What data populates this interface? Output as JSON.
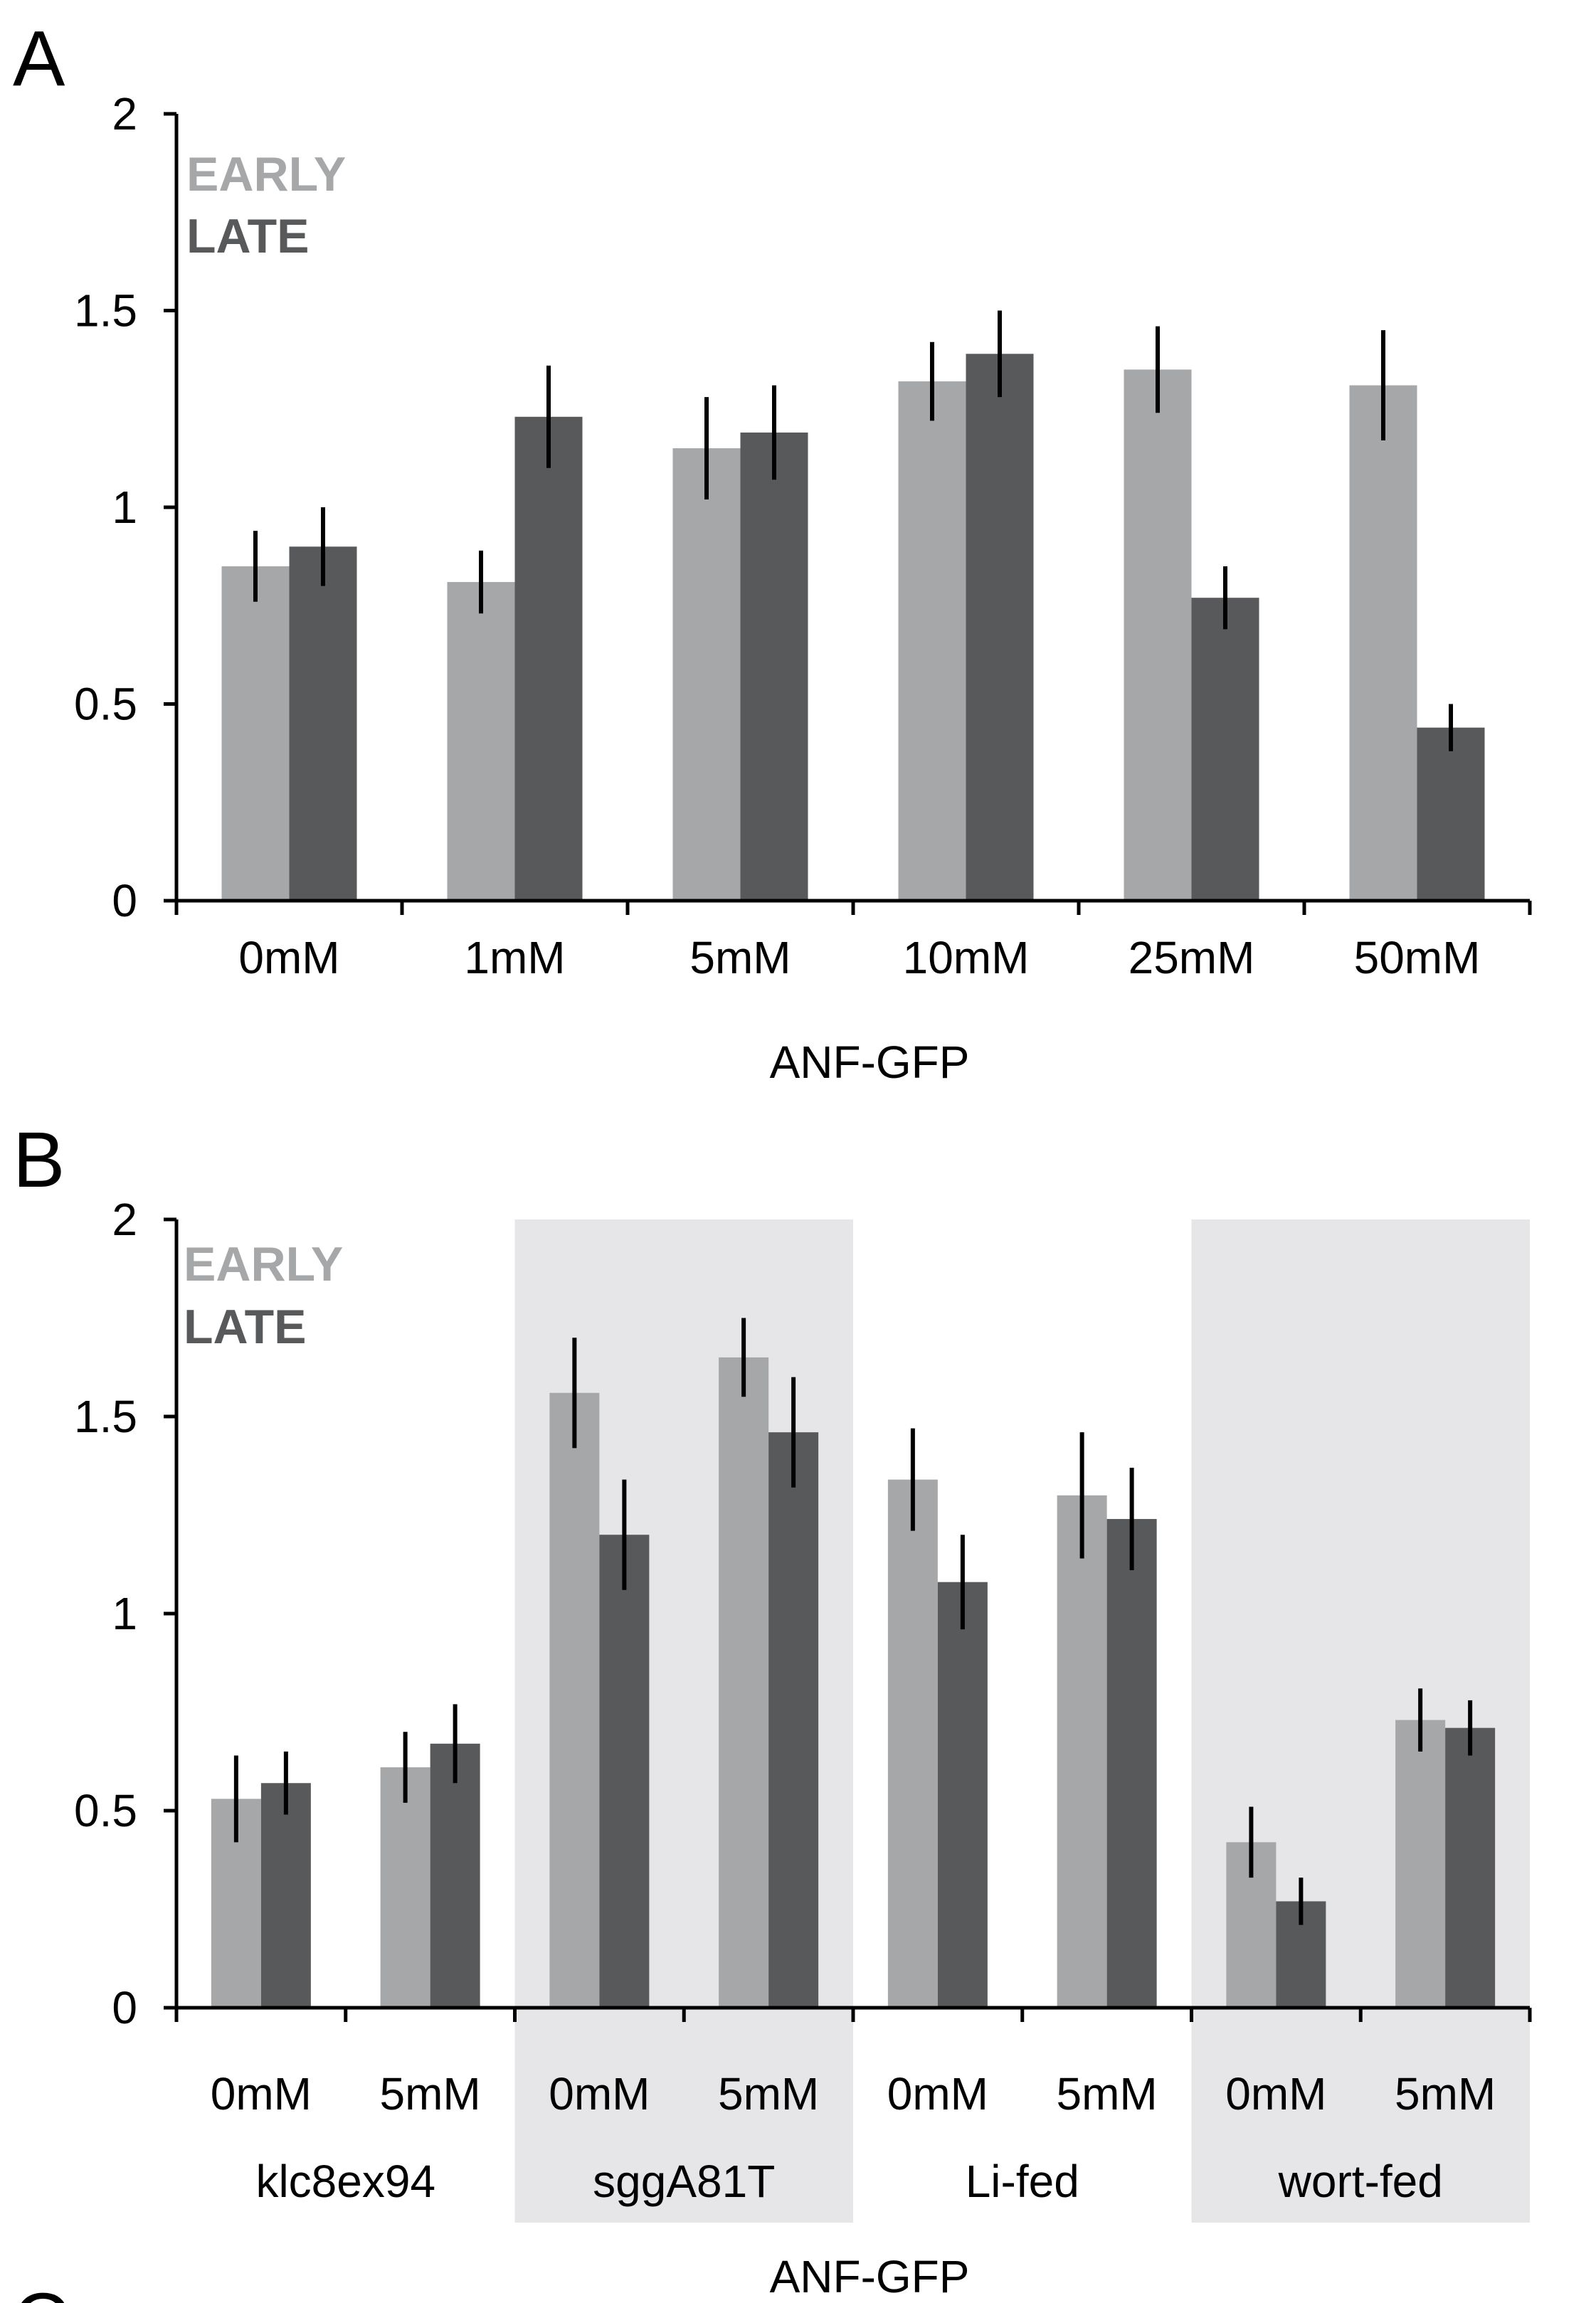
{
  "colors": {
    "early": "#a6a7a9",
    "late": "#58595b",
    "axis": "#000000",
    "error": "#000000",
    "shade": "#e6e6e8"
  },
  "chart_data": [
    {
      "panel": "A",
      "type": "bar",
      "xlabel": "ANF-GFP",
      "ylabel": "",
      "ylim": [
        0,
        2
      ],
      "yticks": [
        "0",
        "0.5",
        "1",
        "1.5",
        "2"
      ],
      "categories": [
        "0mM",
        "1mM",
        "5mM",
        "10mM",
        "25mM",
        "50mM"
      ],
      "legend": [
        "EARLY",
        "LATE"
      ],
      "legend_position": "top-left",
      "series": [
        {
          "name": "EARLY",
          "values": [
            0.85,
            0.81,
            1.15,
            1.32,
            1.35,
            1.31
          ],
          "errors": [
            0.09,
            0.08,
            0.13,
            0.1,
            0.11,
            0.14
          ]
        },
        {
          "name": "LATE",
          "values": [
            0.9,
            1.23,
            1.19,
            1.39,
            0.77,
            0.44
          ],
          "errors": [
            0.1,
            0.13,
            0.12,
            0.11,
            0.08,
            0.06
          ]
        }
      ]
    },
    {
      "panel": "B",
      "type": "bar",
      "xlabel": "ANF-GFP",
      "ylabel": "",
      "ylim": [
        0,
        2
      ],
      "yticks": [
        "0",
        "0.5",
        "1",
        "1.5",
        "2"
      ],
      "categories": [
        "0mM",
        "5mM",
        "0mM",
        "5mM",
        "0mM",
        "5mM",
        "0mM",
        "5mM"
      ],
      "groups": [
        {
          "label": "klc8ex94",
          "shaded": false
        },
        {
          "label": "sggA81T",
          "shaded": true
        },
        {
          "label": "Li-fed",
          "shaded": false
        },
        {
          "label": "wort-fed",
          "shaded": true
        }
      ],
      "legend": [
        "EARLY",
        "LATE"
      ],
      "legend_position": "top-left",
      "series": [
        {
          "name": "EARLY",
          "values": [
            0.53,
            0.61,
            1.56,
            1.65,
            1.34,
            1.3,
            0.42,
            0.73
          ],
          "errors": [
            0.11,
            0.09,
            0.14,
            0.1,
            0.13,
            0.16,
            0.09,
            0.08
          ]
        },
        {
          "name": "LATE",
          "values": [
            0.57,
            0.67,
            1.2,
            1.46,
            1.08,
            1.24,
            0.27,
            0.71
          ],
          "errors": [
            0.08,
            0.1,
            0.14,
            0.14,
            0.12,
            0.13,
            0.06,
            0.07
          ]
        }
      ]
    }
  ],
  "panel_c_label": "C"
}
